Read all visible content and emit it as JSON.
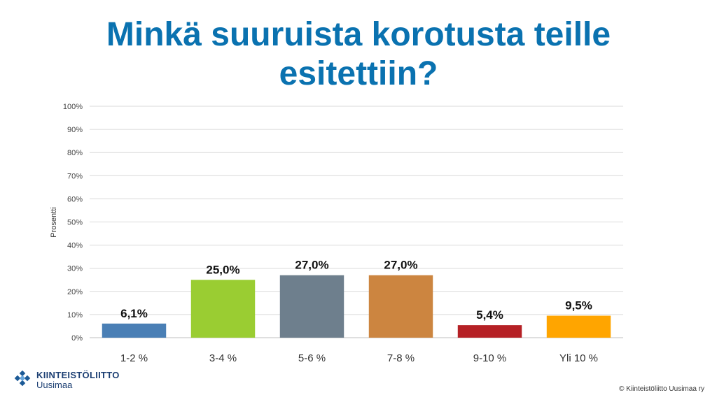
{
  "slide": {
    "title_line1": "Minkä suuruista korotusta teille",
    "title_line2": "esitettiin?",
    "logo_name": "KIINTEISTÖLIITTO",
    "logo_sub": "Uusimaa",
    "copyright": "© Kiinteistöliitto Uusimaa ry"
  },
  "colors": {
    "title": "#0a72b0",
    "bars": [
      "#4a7fb5",
      "#9acd32",
      "#6e7f8d",
      "#cc8540",
      "#b52025",
      "#ffa500"
    ]
  },
  "chart_data": {
    "type": "bar",
    "categories": [
      "1-2 %",
      "3-4 %",
      "5-6 %",
      "7-8 %",
      "9-10 %",
      "Yli 10 %"
    ],
    "values": [
      6.1,
      25.0,
      27.0,
      27.0,
      5.4,
      9.5
    ],
    "data_labels": [
      "6,1%",
      "25,0%",
      "27,0%",
      "27,0%",
      "5,4%",
      "9,5%"
    ],
    "ylabel": "Prosentti",
    "xlabel": "",
    "ylim": [
      0,
      100
    ],
    "yticks": [
      0,
      10,
      20,
      30,
      40,
      50,
      60,
      70,
      80,
      90,
      100
    ],
    "ytick_labels": [
      "0%",
      "10%",
      "20%",
      "30%",
      "40%",
      "50%",
      "60%",
      "70%",
      "80%",
      "90%",
      "100%"
    ],
    "grid": true,
    "legend": "none"
  }
}
